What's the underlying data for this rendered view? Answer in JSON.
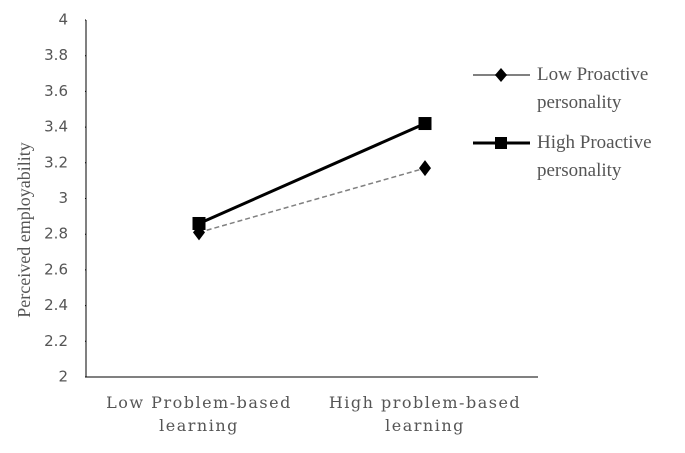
{
  "chart_data": {
    "type": "line",
    "y_label": "Perceived employability",
    "categories": [
      "Low Problem-based learning",
      "High problem-based learning"
    ],
    "series": [
      {
        "name": "Low Proactive personality",
        "color": "#808080",
        "marker": "diamond",
        "dashed": true,
        "values": [
          2.81,
          3.17
        ]
      },
      {
        "name": "High Proactive personality",
        "color": "#000000",
        "marker": "square",
        "dashed": false,
        "values": [
          2.86,
          3.42
        ]
      }
    ],
    "ylim": [
      2,
      4
    ],
    "yticks": [
      2,
      2.2,
      2.4,
      2.6,
      2.8,
      3,
      3.2,
      3.4,
      3.6,
      3.8,
      4
    ],
    "legend": "right"
  }
}
